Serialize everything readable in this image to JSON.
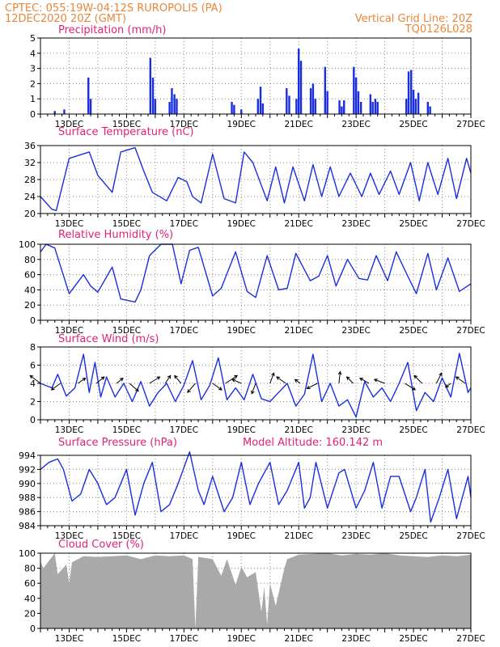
{
  "header": {
    "line1_left": "CPTEC:   055:19W-04:12S   RUROPOLIS (PA)",
    "line1_right": "Vertical Grid Line: 20Z",
    "line2_left": "12DEC2020 20Z (GMT)",
    "line2_right": "TQ0126L028"
  },
  "colors": {
    "header_text": "#e8873a",
    "panel_title": "#e0207a",
    "series": "#1a2ee0",
    "cloud": "#a9a9a9",
    "wind_arrow": "#000000"
  },
  "x_axis": {
    "start_day": 12.0,
    "end_day": 27.0,
    "tick_labels": [
      "13DEC",
      "15DEC",
      "17DEC",
      "19DEC",
      "21DEC",
      "23DEC",
      "25DEC",
      "27DEC"
    ],
    "tick_days": [
      13,
      15,
      17,
      19,
      21,
      23,
      25,
      27
    ]
  },
  "chart_data": [
    {
      "type": "bar",
      "title": "Precipitation (mm/h)",
      "ylim": [
        0,
        5
      ],
      "yticks": [
        "0",
        "1",
        "2",
        "3",
        "4",
        "5"
      ],
      "grid": true,
      "x": [
        12.5,
        12.83,
        13.67,
        13.75,
        15.83,
        15.92,
        16.0,
        16.5,
        16.58,
        16.67,
        16.75,
        18.67,
        18.75,
        19.0,
        19.58,
        19.67,
        19.75,
        20.58,
        20.67,
        20.92,
        21.0,
        21.08,
        21.42,
        21.5,
        21.58,
        21.92,
        22.0,
        22.42,
        22.5,
        22.58,
        22.92,
        23.0,
        23.08,
        23.17,
        23.5,
        23.58,
        23.67,
        23.75,
        24.75,
        24.83,
        24.92,
        25.0,
        25.08,
        25.17,
        25.5,
        25.58
      ],
      "values": [
        0.2,
        0.3,
        2.4,
        1.0,
        3.7,
        2.4,
        1.0,
        0.8,
        1.7,
        1.3,
        1.0,
        0.8,
        0.6,
        0.3,
        1.0,
        1.8,
        0.7,
        1.7,
        1.2,
        1.0,
        4.3,
        3.5,
        1.7,
        2.0,
        1.0,
        3.1,
        1.5,
        0.9,
        0.5,
        0.9,
        3.1,
        2.4,
        1.5,
        0.8,
        1.3,
        0.8,
        1.0,
        0.8,
        1.0,
        2.8,
        2.9,
        1.6,
        1.0,
        1.4,
        0.8,
        0.5
      ]
    },
    {
      "type": "line",
      "title": "Surface Temperature (nC)",
      "ylim": [
        20,
        36
      ],
      "yticks": [
        "20",
        "24",
        "28",
        "32",
        "36"
      ],
      "grid": true,
      "x": [
        12.0,
        12.4,
        12.55,
        13.0,
        13.7,
        14.0,
        14.5,
        14.8,
        15.3,
        15.6,
        15.9,
        16.4,
        16.8,
        17.1,
        17.3,
        17.6,
        18.0,
        18.4,
        18.8,
        19.1,
        19.4,
        19.9,
        20.2,
        20.5,
        20.8,
        21.2,
        21.5,
        21.8,
        22.1,
        22.4,
        22.8,
        23.2,
        23.5,
        23.8,
        24.2,
        24.5,
        24.9,
        25.2,
        25.5,
        25.85,
        26.2,
        26.5,
        26.85,
        27.0
      ],
      "values": [
        24.0,
        21.0,
        20.7,
        33.0,
        34.5,
        29.0,
        25.0,
        34.5,
        35.5,
        30.0,
        25.0,
        23.0,
        28.5,
        27.5,
        24.0,
        22.5,
        34.0,
        23.5,
        22.5,
        34.5,
        32.0,
        23.0,
        31.0,
        22.5,
        31.0,
        23.0,
        31.5,
        24.0,
        31.0,
        24.0,
        29.5,
        24.0,
        29.5,
        24.5,
        30.0,
        24.5,
        32.0,
        23.0,
        32.0,
        24.5,
        33.0,
        23.5,
        33.0,
        29.5
      ]
    },
    {
      "type": "line",
      "title": "Relative Humidity (%)",
      "ylim": [
        0,
        100
      ],
      "yticks": [
        "0",
        "20",
        "40",
        "60",
        "80",
        "100"
      ],
      "grid": true,
      "x": [
        12.0,
        12.2,
        12.5,
        13.0,
        13.5,
        13.75,
        14.0,
        14.5,
        14.8,
        15.3,
        15.5,
        15.8,
        16.2,
        16.6,
        16.9,
        17.2,
        17.5,
        18.0,
        18.3,
        18.8,
        19.2,
        19.5,
        19.9,
        20.3,
        20.6,
        20.9,
        21.4,
        21.7,
        22.0,
        22.3,
        22.7,
        23.1,
        23.4,
        23.7,
        24.1,
        24.4,
        24.8,
        25.1,
        25.5,
        25.8,
        26.2,
        26.6,
        27.0
      ],
      "values": [
        90.0,
        100.0,
        95.0,
        35.0,
        60.0,
        45.0,
        37.0,
        70.0,
        28.0,
        24.0,
        40.0,
        85.0,
        100.0,
        100.0,
        48.0,
        92.0,
        96.0,
        32.0,
        42.0,
        90.0,
        38.0,
        30.0,
        85.0,
        40.0,
        42.0,
        88.0,
        52.0,
        58.0,
        85.0,
        45.0,
        80.0,
        55.0,
        53.0,
        85.0,
        52.0,
        90.0,
        58.0,
        35.0,
        88.0,
        40.0,
        82.0,
        38.0,
        48.0
      ]
    },
    {
      "type": "line",
      "title": "Surface Wind (m/s)",
      "ylim": [
        0,
        8
      ],
      "yticks": [
        "0",
        "2",
        "4",
        "6",
        "8"
      ],
      "grid": true,
      "x": [
        12.0,
        12.4,
        12.6,
        12.9,
        13.2,
        13.5,
        13.7,
        13.9,
        14.1,
        14.3,
        14.6,
        14.9,
        15.2,
        15.5,
        15.8,
        16.1,
        16.4,
        16.7,
        17.0,
        17.3,
        17.6,
        17.9,
        18.2,
        18.5,
        18.8,
        19.1,
        19.4,
        19.7,
        20.0,
        20.3,
        20.6,
        20.9,
        21.2,
        21.5,
        21.8,
        22.1,
        22.4,
        22.7,
        23.0,
        23.3,
        23.6,
        23.9,
        24.2,
        24.5,
        24.8,
        25.1,
        25.4,
        25.7,
        26.0,
        26.3,
        26.6,
        26.9,
        27.0
      ],
      "values": [
        4.0,
        3.5,
        5.0,
        2.6,
        3.5,
        7.2,
        3.0,
        6.3,
        2.5,
        4.7,
        2.5,
        4.0,
        2.0,
        4.2,
        1.5,
        3.0,
        4.0,
        2.0,
        3.8,
        6.5,
        2.2,
        3.8,
        6.8,
        2.2,
        3.5,
        2.2,
        5.0,
        2.3,
        2.0,
        3.0,
        4.0,
        1.5,
        2.8,
        7.2,
        2.0,
        4.0,
        1.5,
        2.2,
        0.3,
        4.2,
        2.5,
        3.5,
        2.0,
        4.0,
        6.3,
        1.0,
        3.0,
        2.0,
        4.6,
        2.5,
        7.3,
        3.0,
        3.5
      ]
    },
    {
      "type": "line",
      "title": "Surface Pressure (hPa)",
      "annotation": "Model Altitude: 160.142 m",
      "ylim": [
        984,
        994
      ],
      "yticks": [
        "984",
        "986",
        "988",
        "990",
        "992",
        "994"
      ],
      "grid": true,
      "x": [
        12.0,
        12.3,
        12.6,
        12.8,
        13.1,
        13.4,
        13.7,
        14.0,
        14.3,
        14.6,
        15.0,
        15.3,
        15.6,
        15.9,
        16.2,
        16.5,
        16.8,
        17.2,
        17.5,
        17.7,
        18.0,
        18.4,
        18.7,
        19.0,
        19.3,
        19.6,
        20.0,
        20.3,
        20.6,
        21.0,
        21.2,
        21.4,
        21.6,
        22.0,
        22.2,
        22.4,
        22.6,
        23.0,
        23.3,
        23.6,
        23.9,
        24.2,
        24.5,
        24.9,
        25.1,
        25.4,
        25.6,
        25.9,
        26.2,
        26.5,
        26.7,
        26.9,
        27.0
      ],
      "values": [
        992.0,
        993.0,
        993.5,
        992.0,
        987.5,
        988.5,
        992.0,
        990.0,
        987.0,
        988.0,
        992.0,
        985.5,
        990.0,
        993.0,
        986.0,
        987.0,
        990.0,
        994.5,
        989.0,
        987.0,
        991.0,
        986.0,
        988.0,
        993.0,
        987.0,
        990.0,
        993.0,
        987.0,
        989.0,
        993.0,
        986.5,
        988.0,
        993.0,
        986.5,
        989.0,
        991.5,
        992.0,
        986.5,
        989.0,
        993.0,
        986.5,
        991.0,
        991.0,
        986.0,
        988.0,
        992.0,
        984.5,
        988.0,
        992.0,
        985.0,
        988.0,
        991.0,
        988.0
      ]
    },
    {
      "type": "area",
      "title": "Cloud Cover (%)",
      "ylim": [
        0,
        100
      ],
      "yticks": [
        "0",
        "20",
        "40",
        "60",
        "80",
        "100"
      ],
      "grid": true,
      "x": [
        12.0,
        12.1,
        12.5,
        12.6,
        12.9,
        13.0,
        13.1,
        13.5,
        14.0,
        14.5,
        15.0,
        15.5,
        16.0,
        16.5,
        17.0,
        17.3,
        17.4,
        17.5,
        18.0,
        18.3,
        18.5,
        18.8,
        19.0,
        19.2,
        19.5,
        19.7,
        19.8,
        19.9,
        20.0,
        20.2,
        20.5,
        20.6,
        21.0,
        21.5,
        22.0,
        22.5,
        23.0,
        23.5,
        24.0,
        24.5,
        25.0,
        25.5,
        26.0,
        26.5,
        27.0
      ],
      "values": [
        90,
        80,
        100,
        72,
        85,
        60,
        88,
        96,
        95,
        96,
        97,
        92,
        97,
        96,
        97,
        92,
        0,
        95,
        92,
        70,
        92,
        58,
        82,
        68,
        75,
        22,
        55,
        5,
        60,
        30,
        80,
        92,
        98,
        99,
        100,
        97,
        99,
        98,
        100,
        97,
        96,
        95,
        97,
        96,
        98
      ]
    }
  ],
  "wind_arrows": {
    "x": [
      12.0,
      12.7,
      13.3,
      13.95,
      14.65,
      15.1,
      15.8,
      16.35,
      16.9,
      17.4,
      18.0,
      18.45,
      19.0,
      19.5,
      20.0,
      20.55,
      21.05,
      21.65,
      22.4,
      22.9,
      23.45,
      24.0,
      24.7,
      25.3,
      25.8,
      26.3,
      26.8
    ],
    "u": [
      -0.8,
      -0.7,
      0.6,
      0.6,
      0.5,
      0.7,
      0.8,
      0.4,
      -0.5,
      -0.6,
      0.7,
      0.9,
      -0.7,
      -0.3,
      0.3,
      -0.7,
      -0.4,
      -0.8,
      0.1,
      -0.5,
      -0.7,
      -0.8,
      0.8,
      -0.6,
      0.4,
      -0.4,
      -0.7
    ],
    "v": [
      0.6,
      -0.5,
      0.4,
      0.5,
      0.4,
      -0.6,
      0.5,
      0.6,
      0.6,
      -0.7,
      -0.5,
      0.6,
      0.3,
      -0.8,
      0.8,
      0.5,
      0.3,
      -0.4,
      0.9,
      0.5,
      0.4,
      0.3,
      -0.5,
      0.6,
      0.8,
      -0.3,
      0.5
    ]
  }
}
